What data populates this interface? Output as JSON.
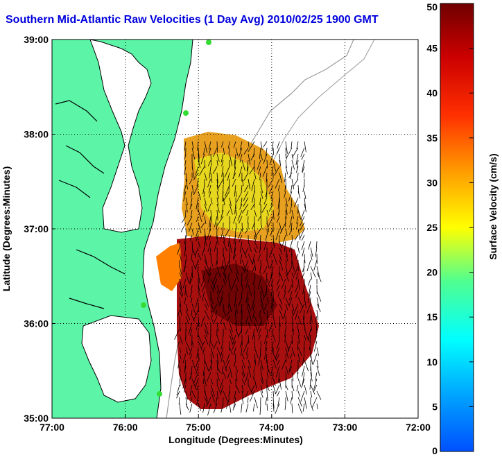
{
  "chart_data": {
    "type": "heatmap",
    "title": "Southern Mid-Atlantic Raw Velocities (1 Day Avg) 2010/02/25 1900 GMT",
    "xlabel": "Longitude (Degrees:Minutes)",
    "ylabel": "Latitude (Degrees:Minutes)",
    "colorbar_label": "Surface Velocity (cm/s)",
    "xlim": [
      -77,
      -72
    ],
    "ylim": [
      35,
      39
    ],
    "clim": [
      0,
      50
    ],
    "x_ticks": [
      {
        "value": -77,
        "label": "77:00"
      },
      {
        "value": -76,
        "label": "76:00"
      },
      {
        "value": -75,
        "label": "75:00"
      },
      {
        "value": -74,
        "label": "74:00"
      },
      {
        "value": -73,
        "label": "73:00"
      },
      {
        "value": -72,
        "label": "72:00"
      }
    ],
    "y_ticks": [
      {
        "value": 35,
        "label": "35:00"
      },
      {
        "value": 36,
        "label": "36:00"
      },
      {
        "value": 37,
        "label": "37:00"
      },
      {
        "value": 38,
        "label": "38:00"
      },
      {
        "value": 39,
        "label": "39:00"
      }
    ],
    "colorbar_ticks": [
      {
        "value": 0,
        "label": "0"
      },
      {
        "value": 5,
        "label": "5"
      },
      {
        "value": 10,
        "label": "10"
      },
      {
        "value": 15,
        "label": "15"
      },
      {
        "value": 20,
        "label": "20"
      },
      {
        "value": 25,
        "label": "25"
      },
      {
        "value": 30,
        "label": "30"
      },
      {
        "value": 35,
        "label": "35"
      },
      {
        "value": 40,
        "label": "40"
      },
      {
        "value": 45,
        "label": "45"
      },
      {
        "value": 50,
        "label": "50"
      }
    ],
    "grid": true,
    "colors": {
      "land": "#5cf5a8",
      "coastline": "#000000",
      "bathymetry": "#9a9a9a",
      "stations": "#33dd33",
      "title": "#0000dd"
    }
  }
}
